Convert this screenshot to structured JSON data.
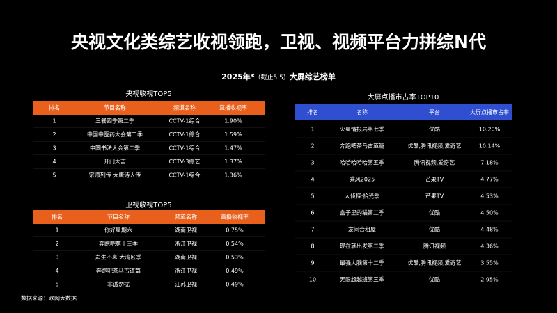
{
  "header": {
    "title": "央视文化类综艺收视领跑，卫视、视频平台力拼综N代",
    "subtitle": [
      "2025年*",
      "（截止5.5）",
      "大屏综艺榜单"
    ]
  },
  "tables": [
    {
      "title": "央视收视TOP5",
      "columns": [
        "排名",
        "节目名称",
        "频道名称",
        "直播收视率"
      ],
      "rows": [
        [
          "1",
          "三餐四季第二季",
          "CCTV-1综合",
          "1.90%"
        ],
        [
          "2",
          "中国中医药大会第二季",
          "CCTV-1综合",
          "1.59%"
        ],
        [
          "3",
          "中国书法大会第二季",
          "CCTV-1综合",
          "1.47%"
        ],
        [
          "4",
          "开门大吉",
          "CCTV-3综艺",
          "1.37%"
        ],
        [
          "5",
          "宗师列传·大唐诗人传",
          "CCTV-1综合",
          "1.36%"
        ]
      ]
    },
    {
      "title": "卫视收视TOP5",
      "columns": [
        "排名",
        "节目名称",
        "频道名称",
        "直播收视率"
      ],
      "rows": [
        [
          "1",
          "你好星期六",
          "湖南卫视",
          "0.75%"
        ],
        [
          "2",
          "奔跑吧第十三季",
          "浙江卫视",
          "0.54%"
        ],
        [
          "3",
          "声生不息·大湾区季",
          "湖南卫视",
          "0.53%"
        ],
        [
          "4",
          "奔跑吧茶马古道篇",
          "浙江卫视",
          "0.49%"
        ],
        [
          "5",
          "非诚勿扰",
          "江苏卫视",
          "0.49%"
        ]
      ]
    },
    {
      "title": "大屏点播市占率TOP10",
      "columns": [
        "排名",
        "名称",
        "平台",
        "大屏点播市占率"
      ],
      "rows": [
        [
          "1",
          "火星情报局第七季",
          "优酷",
          "10.20%"
        ],
        [
          "2",
          "奔跑吧茶马古道篇",
          "优酷,腾讯视频,爱奇艺",
          "10.14%"
        ],
        [
          "3",
          "哈哈哈哈哈第五季",
          "腾讯视频,爱奇艺",
          "7.18%"
        ],
        [
          "4",
          "乘风2025",
          "芒果TV",
          "4.77%"
        ],
        [
          "5",
          "大侦探·拾光季",
          "芒果TV",
          "4.53%"
        ],
        [
          "6",
          "盒子里的猫第二季",
          "优酷",
          "4.50%"
        ],
        [
          "7",
          "友问合租屋",
          "优酷",
          "4.48%"
        ],
        [
          "8",
          "现在就出发第二季",
          "腾讯视频",
          "4.36%"
        ],
        [
          "9",
          "最强大脑第十二季",
          "优酷,腾讯视频,爱奇艺",
          "3.55%"
        ],
        [
          "10",
          "无限超越班第三季",
          "优酷",
          "2.95%"
        ]
      ]
    }
  ],
  "footer": "数据来源：欢网大数据"
}
